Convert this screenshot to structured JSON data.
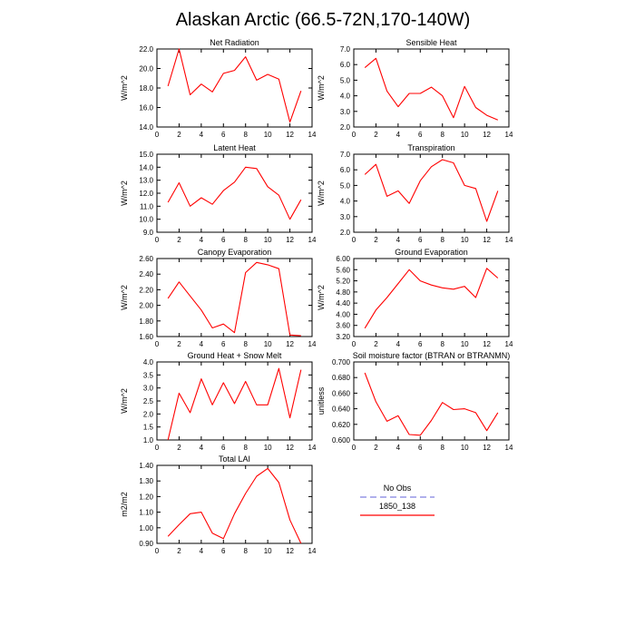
{
  "figure_title": "Alaskan Arctic (66.5-72N,170-140W)",
  "legend": {
    "entries": [
      {
        "name": "No Obs",
        "color": "#8080e0",
        "style": "dashed"
      },
      {
        "name": "1850_138",
        "color": "#ff0000",
        "style": "solid"
      }
    ]
  },
  "chart_data": [
    {
      "type": "line",
      "title": "Net Radiation",
      "ylabel": "W/m^2",
      "xlim": [
        0,
        14
      ],
      "xticks": [
        0,
        2,
        4,
        6,
        8,
        10,
        12,
        14
      ],
      "ylim": [
        14,
        22
      ],
      "yticks": [
        "14.0",
        "16.0",
        "18.0",
        "20.0",
        "22.0"
      ],
      "x": [
        1,
        2,
        3,
        4,
        5,
        6,
        7,
        8,
        9,
        10,
        11,
        12,
        13
      ],
      "series": [
        {
          "name": "1850_138",
          "color": "#ff0000",
          "values": [
            18.2,
            22.0,
            17.3,
            18.4,
            17.6,
            19.5,
            19.8,
            21.2,
            18.8,
            19.4,
            18.9,
            14.5,
            17.7
          ]
        }
      ]
    },
    {
      "type": "line",
      "title": "Sensible Heat",
      "ylabel": "W/m^2",
      "xlim": [
        0,
        14
      ],
      "xticks": [
        0,
        2,
        4,
        6,
        8,
        10,
        12,
        14
      ],
      "ylim": [
        2,
        7
      ],
      "yticks": [
        "2.0",
        "3.0",
        "4.0",
        "5.0",
        "6.0",
        "7.0"
      ],
      "x": [
        1,
        2,
        3,
        4,
        5,
        6,
        7,
        8,
        9,
        10,
        11,
        12,
        13
      ],
      "series": [
        {
          "name": "1850_138",
          "color": "#ff0000",
          "values": [
            5.8,
            6.4,
            4.3,
            3.3,
            4.15,
            4.15,
            4.55,
            4.0,
            2.6,
            4.6,
            3.25,
            2.75,
            2.45
          ]
        }
      ]
    },
    {
      "type": "line",
      "title": "Latent Heat",
      "ylabel": "W/m^2",
      "xlim": [
        0,
        14
      ],
      "xticks": [
        0,
        2,
        4,
        6,
        8,
        10,
        12,
        14
      ],
      "ylim": [
        9,
        15
      ],
      "yticks": [
        "9.0",
        "10.0",
        "11.0",
        "12.0",
        "13.0",
        "14.0",
        "15.0"
      ],
      "x": [
        1,
        2,
        3,
        4,
        5,
        6,
        7,
        8,
        9,
        10,
        11,
        12,
        13
      ],
      "series": [
        {
          "name": "1850_138",
          "color": "#ff0000",
          "values": [
            11.3,
            12.8,
            11.0,
            11.65,
            11.15,
            12.2,
            12.85,
            14.0,
            13.9,
            12.5,
            11.85,
            10.0,
            11.5
          ]
        }
      ]
    },
    {
      "type": "line",
      "title": "Transpiration",
      "ylabel": "W/m^2",
      "xlim": [
        0,
        14
      ],
      "xticks": [
        0,
        2,
        4,
        6,
        8,
        10,
        12,
        14
      ],
      "ylim": [
        2,
        7
      ],
      "yticks": [
        "2.0",
        "3.0",
        "4.0",
        "5.0",
        "6.0",
        "7.0"
      ],
      "x": [
        1,
        2,
        3,
        4,
        5,
        6,
        7,
        8,
        9,
        10,
        11,
        12,
        13
      ],
      "series": [
        {
          "name": "1850_138",
          "color": "#ff0000",
          "values": [
            5.7,
            6.35,
            4.3,
            4.65,
            3.85,
            5.3,
            6.2,
            6.65,
            6.45,
            5.0,
            4.8,
            2.7,
            4.65
          ]
        }
      ]
    },
    {
      "type": "line",
      "title": "Canopy Evaporation",
      "ylabel": "W/m^2",
      "xlim": [
        0,
        14
      ],
      "xticks": [
        0,
        2,
        4,
        6,
        8,
        10,
        12,
        14
      ],
      "ylim": [
        1.6,
        2.6
      ],
      "yticks": [
        "1.60",
        "1.80",
        "2.00",
        "2.20",
        "2.40",
        "2.60"
      ],
      "x": [
        1,
        2,
        3,
        4,
        5,
        6,
        7,
        8,
        9,
        10,
        11,
        12,
        13
      ],
      "series": [
        {
          "name": "1850_138",
          "color": "#ff0000",
          "values": [
            2.09,
            2.3,
            2.12,
            1.94,
            1.71,
            1.76,
            1.65,
            2.42,
            2.55,
            2.52,
            2.47,
            1.62,
            1.61
          ]
        }
      ]
    },
    {
      "type": "line",
      "title": "Ground Evaporation",
      "ylabel": "W/m^2",
      "xlim": [
        0,
        14
      ],
      "xticks": [
        0,
        2,
        4,
        6,
        8,
        10,
        12,
        14
      ],
      "ylim": [
        3.2,
        6.0
      ],
      "yticks": [
        "3.20",
        "3.60",
        "4.00",
        "4.40",
        "4.80",
        "5.20",
        "5.60",
        "6.00"
      ],
      "x": [
        1,
        2,
        3,
        4,
        5,
        6,
        7,
        8,
        9,
        10,
        11,
        12,
        13
      ],
      "series": [
        {
          "name": "1850_138",
          "color": "#ff0000",
          "values": [
            3.5,
            4.15,
            4.6,
            5.1,
            5.6,
            5.2,
            5.05,
            4.95,
            4.9,
            5.0,
            4.6,
            5.65,
            5.3
          ]
        }
      ]
    },
    {
      "type": "line",
      "title": "Ground Heat + Snow Melt",
      "ylabel": "W/m^2",
      "xlim": [
        0,
        14
      ],
      "xticks": [
        0,
        2,
        4,
        6,
        8,
        10,
        12,
        14
      ],
      "ylim": [
        1,
        4
      ],
      "yticks": [
        "1.0",
        "1.5",
        "2.0",
        "2.5",
        "3.0",
        "3.5",
        "4.0"
      ],
      "x": [
        1,
        2,
        3,
        4,
        5,
        6,
        7,
        8,
        9,
        10,
        11,
        12,
        13
      ],
      "series": [
        {
          "name": "1850_138",
          "color": "#ff0000",
          "values": [
            1.0,
            2.8,
            2.05,
            3.35,
            2.35,
            3.2,
            2.4,
            3.25,
            2.35,
            2.35,
            3.75,
            1.85,
            3.7
          ]
        }
      ]
    },
    {
      "type": "line",
      "title": "Soil moisture factor (BTRAN or BTRANMN)",
      "ylabel": "unitless",
      "xlim": [
        0,
        14
      ],
      "xticks": [
        0,
        2,
        4,
        6,
        8,
        10,
        12,
        14
      ],
      "ylim": [
        0.6,
        0.7
      ],
      "yticks": [
        "0.600",
        "0.620",
        "0.640",
        "0.660",
        "0.680",
        "0.700"
      ],
      "x": [
        1,
        2,
        3,
        4,
        5,
        6,
        7,
        8,
        9,
        10,
        11,
        12,
        13
      ],
      "series": [
        {
          "name": "1850_138",
          "color": "#ff0000",
          "values": [
            0.686,
            0.649,
            0.624,
            0.631,
            0.607,
            0.606,
            0.625,
            0.648,
            0.639,
            0.64,
            0.635,
            0.612,
            0.635
          ]
        }
      ]
    },
    {
      "type": "line",
      "title": "Total LAI",
      "ylabel": "m2/m2",
      "xlim": [
        0,
        14
      ],
      "xticks": [
        0,
        2,
        4,
        6,
        8,
        10,
        12,
        14
      ],
      "ylim": [
        0.9,
        1.4
      ],
      "yticks": [
        "0.90",
        "1.00",
        "1.10",
        "1.20",
        "1.30",
        "1.40"
      ],
      "x": [
        1,
        2,
        3,
        4,
        5,
        6,
        7,
        8,
        9,
        10,
        11,
        12,
        13
      ],
      "series": [
        {
          "name": "1850_138",
          "color": "#ff0000",
          "values": [
            0.945,
            1.02,
            1.09,
            1.1,
            0.965,
            0.93,
            1.09,
            1.22,
            1.33,
            1.38,
            1.29,
            1.05,
            0.9
          ]
        }
      ]
    }
  ]
}
